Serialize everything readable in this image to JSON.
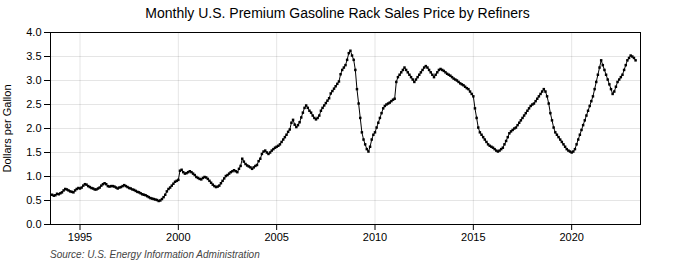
{
  "chart_data": {
    "type": "line",
    "title": "Monthly U.S. Premium Gasoline Rack Sales Price by Refiners",
    "ylabel": "Dollars per Gallon",
    "annotations": [
      "Source: U.S. Energy Information Administration"
    ],
    "marker": "square",
    "grid": true,
    "xlim": [
      1993.5,
      2023.5
    ],
    "xticks": [
      1995,
      2000,
      2005,
      2010,
      2015,
      2020
    ],
    "ylim": [
      0.0,
      4.0
    ],
    "yticks": [
      {
        "value": 0.0,
        "label": "0.0"
      },
      0.5,
      {
        "value": 1.0,
        "label": "1.0"
      },
      1.5,
      {
        "value": 2.0,
        "label": "2.0"
      },
      2.5,
      {
        "value": 3.0,
        "label": "3.0"
      },
      3.5,
      {
        "value": 4.0,
        "label": "4.0"
      }
    ],
    "x": [
      1993.583,
      1993.667,
      1993.75,
      1993.833,
      1993.917,
      1994.0,
      1994.083,
      1994.167,
      1994.25,
      1994.333,
      1994.417,
      1994.5,
      1994.583,
      1994.667,
      1994.75,
      1994.833,
      1994.917,
      1995.0,
      1995.083,
      1995.167,
      1995.25,
      1995.333,
      1995.417,
      1995.5,
      1995.583,
      1995.667,
      1995.75,
      1995.833,
      1995.917,
      1996.0,
      1996.083,
      1996.167,
      1996.25,
      1996.333,
      1996.417,
      1996.5,
      1996.583,
      1996.667,
      1996.75,
      1996.833,
      1996.917,
      1997.0,
      1997.083,
      1997.167,
      1997.25,
      1997.333,
      1997.417,
      1997.5,
      1997.583,
      1997.667,
      1997.75,
      1997.833,
      1997.917,
      1998.0,
      1998.083,
      1998.167,
      1998.25,
      1998.333,
      1998.417,
      1998.5,
      1998.583,
      1998.667,
      1998.75,
      1998.833,
      1998.917,
      1999.0,
      1999.083,
      1999.167,
      1999.25,
      1999.333,
      1999.417,
      1999.5,
      1999.583,
      1999.667,
      1999.75,
      1999.833,
      1999.917,
      2000.0,
      2000.083,
      2000.167,
      2000.25,
      2000.333,
      2000.417,
      2000.5,
      2000.583,
      2000.667,
      2000.75,
      2000.833,
      2000.917,
      2001.0,
      2001.083,
      2001.167,
      2001.25,
      2001.333,
      2001.417,
      2001.5,
      2001.583,
      2001.667,
      2001.75,
      2001.833,
      2001.917,
      2002.0,
      2002.083,
      2002.167,
      2002.25,
      2002.333,
      2002.417,
      2002.5,
      2002.583,
      2002.667,
      2002.75,
      2002.833,
      2002.917,
      2003.0,
      2003.083,
      2003.167,
      2003.25,
      2003.333,
      2003.417,
      2003.5,
      2003.583,
      2003.667,
      2003.75,
      2003.833,
      2003.917,
      2004.0,
      2004.083,
      2004.167,
      2004.25,
      2004.333,
      2004.417,
      2004.5,
      2004.583,
      2004.667,
      2004.75,
      2004.833,
      2004.917,
      2005.0,
      2005.083,
      2005.167,
      2005.25,
      2005.333,
      2005.417,
      2005.5,
      2005.583,
      2005.667,
      2005.75,
      2005.833,
      2005.917,
      2006.0,
      2006.083,
      2006.167,
      2006.25,
      2006.333,
      2006.417,
      2006.5,
      2006.583,
      2006.667,
      2006.75,
      2006.833,
      2006.917,
      2007.0,
      2007.083,
      2007.167,
      2007.25,
      2007.333,
      2007.417,
      2007.5,
      2007.583,
      2007.667,
      2007.75,
      2007.833,
      2007.917,
      2008.0,
      2008.083,
      2008.167,
      2008.25,
      2008.333,
      2008.417,
      2008.5,
      2008.583,
      2008.667,
      2008.75,
      2008.833,
      2008.917,
      2009.0,
      2009.083,
      2009.167,
      2009.25,
      2009.333,
      2009.417,
      2009.5,
      2009.583,
      2009.667,
      2009.75,
      2009.833,
      2009.917,
      2010.0,
      2010.083,
      2010.167,
      2010.25,
      2010.333,
      2010.417,
      2010.5,
      2010.583,
      2010.667,
      2010.75,
      2010.833,
      2010.917,
      2011.0,
      2011.083,
      2011.167,
      2011.25,
      2011.333,
      2011.417,
      2011.5,
      2011.583,
      2011.667,
      2011.75,
      2011.833,
      2011.917,
      2012.0,
      2012.083,
      2012.167,
      2012.25,
      2012.333,
      2012.417,
      2012.5,
      2012.583,
      2012.667,
      2012.75,
      2012.833,
      2012.917,
      2013.0,
      2013.083,
      2013.167,
      2013.25,
      2013.333,
      2013.417,
      2013.5,
      2013.583,
      2013.667,
      2013.75,
      2013.833,
      2013.917,
      2014.0,
      2014.083,
      2014.167,
      2014.25,
      2014.333,
      2014.417,
      2014.5,
      2014.583,
      2014.667,
      2014.75,
      2014.833,
      2014.917,
      2015.0,
      2015.083,
      2015.167,
      2015.25,
      2015.333,
      2015.417,
      2015.5,
      2015.583,
      2015.667,
      2015.75,
      2015.833,
      2015.917,
      2016.0,
      2016.083,
      2016.167,
      2016.25,
      2016.333,
      2016.417,
      2016.5,
      2016.583,
      2016.667,
      2016.75,
      2016.833,
      2016.917,
      2017.0,
      2017.083,
      2017.167,
      2017.25,
      2017.333,
      2017.417,
      2017.5,
      2017.583,
      2017.667,
      2017.75,
      2017.833,
      2017.917,
      2018.0,
      2018.083,
      2018.167,
      2018.25,
      2018.333,
      2018.417,
      2018.5,
      2018.583,
      2018.667,
      2018.75,
      2018.833,
      2018.917,
      2019.0,
      2019.083,
      2019.167,
      2019.25,
      2019.333,
      2019.417,
      2019.5,
      2019.583,
      2019.667,
      2019.75,
      2019.833,
      2019.917,
      2020.0,
      2020.083,
      2020.167,
      2020.25,
      2020.333,
      2020.417,
      2020.5,
      2020.583,
      2020.667,
      2020.75,
      2020.833,
      2020.917,
      2021.0,
      2021.083,
      2021.167,
      2021.25,
      2021.333,
      2021.417,
      2021.5,
      2021.583,
      2021.667,
      2021.75,
      2021.833,
      2021.917,
      2022.0,
      2022.083,
      2022.167,
      2022.25,
      2022.333,
      2022.417,
      2022.5,
      2022.583,
      2022.667,
      2022.75,
      2022.833,
      2022.917,
      2023.0,
      2023.083,
      2023.167,
      2023.25
    ],
    "values": [
      0.62,
      0.6,
      0.61,
      0.64,
      0.63,
      0.65,
      0.67,
      0.71,
      0.74,
      0.73,
      0.71,
      0.69,
      0.68,
      0.67,
      0.71,
      0.74,
      0.76,
      0.75,
      0.77,
      0.81,
      0.84,
      0.83,
      0.8,
      0.78,
      0.76,
      0.75,
      0.73,
      0.73,
      0.75,
      0.77,
      0.81,
      0.84,
      0.86,
      0.84,
      0.8,
      0.79,
      0.8,
      0.8,
      0.79,
      0.77,
      0.75,
      0.77,
      0.78,
      0.8,
      0.82,
      0.8,
      0.78,
      0.76,
      0.75,
      0.73,
      0.72,
      0.7,
      0.68,
      0.67,
      0.65,
      0.63,
      0.62,
      0.61,
      0.59,
      0.57,
      0.55,
      0.54,
      0.53,
      0.52,
      0.51,
      0.49,
      0.5,
      0.53,
      0.57,
      0.62,
      0.69,
      0.74,
      0.77,
      0.81,
      0.85,
      0.89,
      0.91,
      0.93,
      1.12,
      1.14,
      1.09,
      1.06,
      1.07,
      1.09,
      1.11,
      1.09,
      1.06,
      1.03,
      0.99,
      0.97,
      0.95,
      0.94,
      0.97,
      0.99,
      0.98,
      0.95,
      0.91,
      0.87,
      0.83,
      0.8,
      0.78,
      0.79,
      0.81,
      0.86,
      0.91,
      0.96,
      1.01,
      1.03,
      1.06,
      1.09,
      1.11,
      1.13,
      1.11,
      1.09,
      1.16,
      1.22,
      1.37,
      1.31,
      1.26,
      1.23,
      1.21,
      1.19,
      1.16,
      1.19,
      1.22,
      1.24,
      1.32,
      1.37,
      1.47,
      1.52,
      1.54,
      1.5,
      1.47,
      1.5,
      1.54,
      1.57,
      1.6,
      1.62,
      1.64,
      1.67,
      1.72,
      1.77,
      1.82,
      1.87,
      1.93,
      1.98,
      2.12,
      2.18,
      2.08,
      2.03,
      2.07,
      2.13,
      2.23,
      2.33,
      2.43,
      2.48,
      2.43,
      2.37,
      2.33,
      2.27,
      2.22,
      2.19,
      2.22,
      2.27,
      2.37,
      2.43,
      2.48,
      2.53,
      2.58,
      2.63,
      2.73,
      2.78,
      2.83,
      2.88,
      2.93,
      2.98,
      3.13,
      3.22,
      3.27,
      3.32,
      3.43,
      3.57,
      3.62,
      3.52,
      3.43,
      3.22,
      2.82,
      2.52,
      2.22,
      1.92,
      1.77,
      1.67,
      1.57,
      1.52,
      1.62,
      1.77,
      1.87,
      1.92,
      2.02,
      2.12,
      2.22,
      2.32,
      2.42,
      2.47,
      2.5,
      2.52,
      2.54,
      2.57,
      2.6,
      2.62,
      2.97,
      3.07,
      3.12,
      3.17,
      3.22,
      3.27,
      3.22,
      3.17,
      3.12,
      3.07,
      3.02,
      2.97,
      3.02,
      3.07,
      3.12,
      3.17,
      3.22,
      3.27,
      3.3,
      3.27,
      3.22,
      3.17,
      3.12,
      3.07,
      3.12,
      3.17,
      3.22,
      3.24,
      3.22,
      3.2,
      3.17,
      3.14,
      3.12,
      3.1,
      3.07,
      3.04,
      3.02,
      3.0,
      2.97,
      2.94,
      2.92,
      2.9,
      2.87,
      2.84,
      2.82,
      2.77,
      2.72,
      2.67,
      2.42,
      2.22,
      2.02,
      1.92,
      1.87,
      1.82,
      1.77,
      1.72,
      1.67,
      1.64,
      1.62,
      1.6,
      1.57,
      1.54,
      1.52,
      1.54,
      1.57,
      1.6,
      1.67,
      1.74,
      1.82,
      1.9,
      1.94,
      1.97,
      2.0,
      2.02,
      2.07,
      2.12,
      2.17,
      2.22,
      2.27,
      2.32,
      2.37,
      2.42,
      2.47,
      2.5,
      2.52,
      2.57,
      2.62,
      2.67,
      2.72,
      2.77,
      2.82,
      2.77,
      2.67,
      2.52,
      2.32,
      2.17,
      2.02,
      1.92,
      1.87,
      1.82,
      1.77,
      1.72,
      1.67,
      1.62,
      1.57,
      1.54,
      1.52,
      1.5,
      1.52,
      1.57,
      1.67,
      1.77,
      1.87,
      1.97,
      2.07,
      2.17,
      2.27,
      2.37,
      2.47,
      2.57,
      2.67,
      2.82,
      2.97,
      3.12,
      3.27,
      3.42,
      3.32,
      3.22,
      3.12,
      3.02,
      2.92,
      2.82,
      2.72,
      2.77,
      2.87,
      2.97,
      3.02,
      3.07,
      3.12,
      3.22,
      3.32,
      3.42,
      3.47,
      3.52,
      3.5,
      3.47,
      3.42
    ]
  }
}
